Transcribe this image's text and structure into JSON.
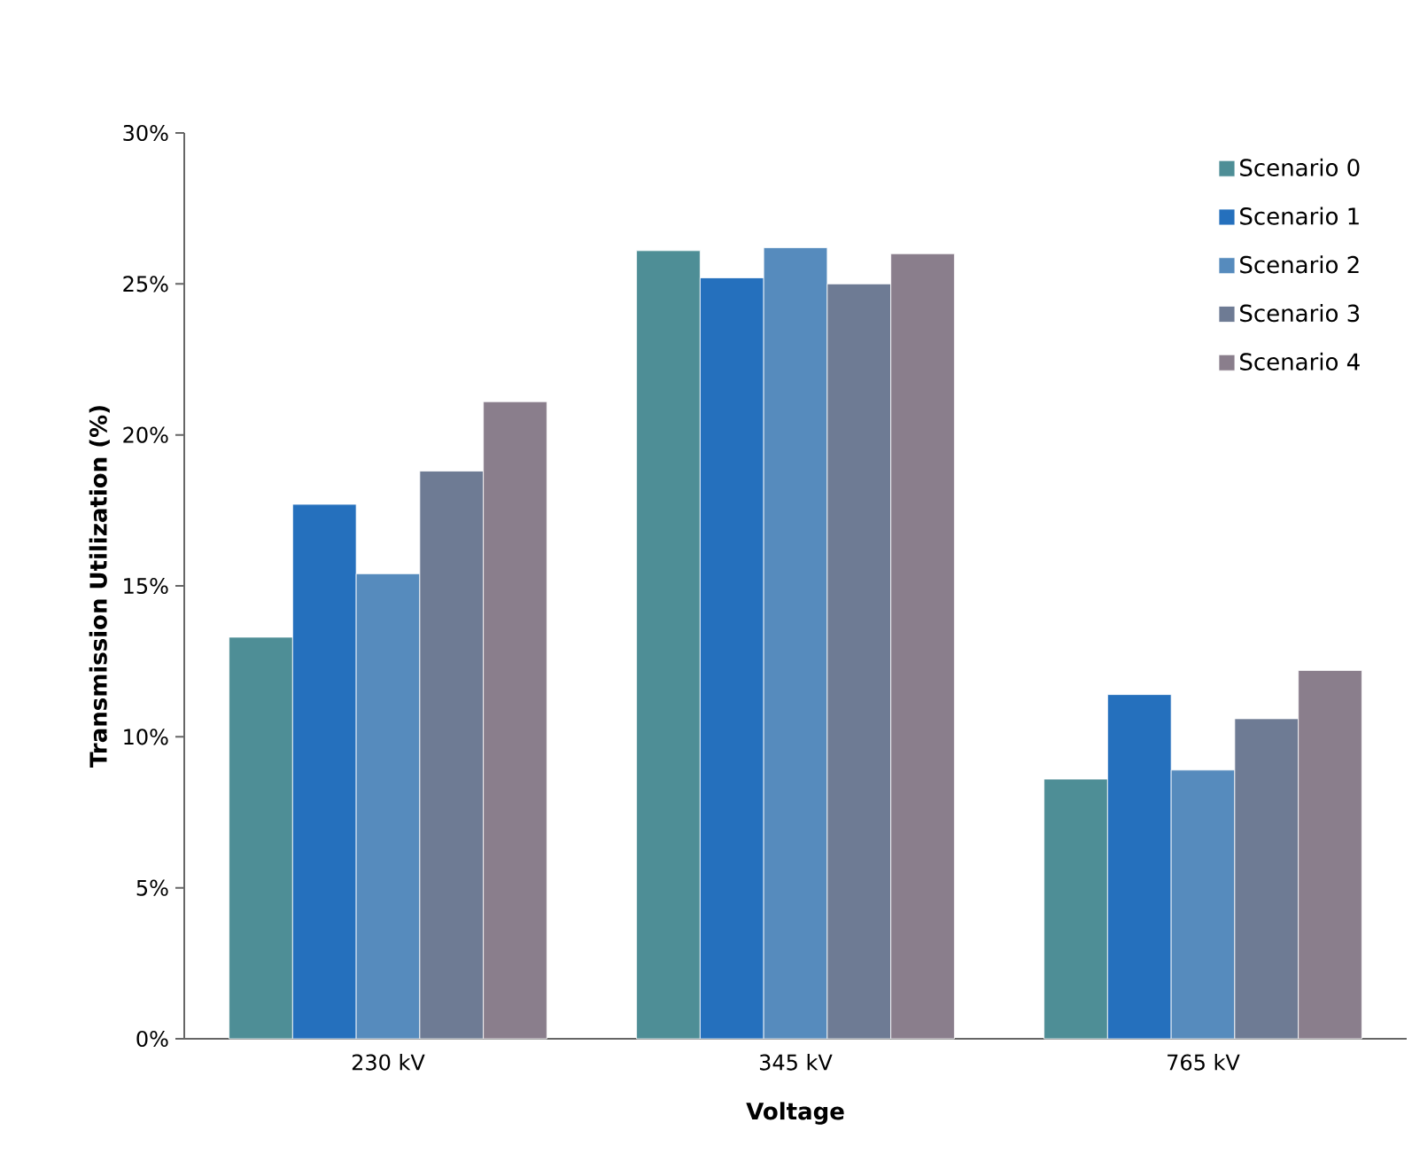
{
  "chart_data": {
    "type": "bar",
    "xlabel": "Voltage",
    "ylabel": "Transmission Utilization (%)",
    "categories": [
      "230 kV",
      "345 kV",
      "765 kV"
    ],
    "series": [
      {
        "name": "Scenario 0",
        "color": "#4e8e96",
        "values": [
          13.3,
          26.1,
          8.6
        ]
      },
      {
        "name": "Scenario 1",
        "color": "#2570bd",
        "values": [
          17.7,
          25.2,
          11.4
        ]
      },
      {
        "name": "Scenario 2",
        "color": "#568bbd",
        "values": [
          15.4,
          26.2,
          8.9
        ]
      },
      {
        "name": "Scenario 3",
        "color": "#6e7b94",
        "values": [
          18.8,
          25.0,
          10.6
        ]
      },
      {
        "name": "Scenario 4",
        "color": "#8a7e8c",
        "values": [
          21.1,
          26.0,
          12.2
        ]
      }
    ],
    "ylim": [
      0,
      30
    ],
    "yticks": [
      {
        "value": 0,
        "label": "0%"
      },
      {
        "value": 5,
        "label": "5%"
      },
      {
        "value": 10,
        "label": "10%"
      },
      {
        "value": 15,
        "label": "15%"
      },
      {
        "value": 20,
        "label": "20%"
      },
      {
        "value": 25,
        "label": "25%"
      },
      {
        "value": 30,
        "label": "30%"
      }
    ],
    "grid": false,
    "legend": "top right"
  }
}
